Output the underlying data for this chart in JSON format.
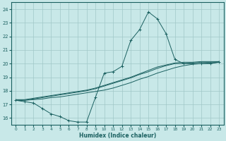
{
  "xlabel": "Humidex (Indice chaleur)",
  "bg_color": "#c8e8e8",
  "grid_color": "#a0c8c8",
  "line_color": "#1a6060",
  "xlim": [
    -0.5,
    23.5
  ],
  "ylim": [
    15.5,
    24.5
  ],
  "yticks": [
    16,
    17,
    18,
    19,
    20,
    21,
    22,
    23,
    24
  ],
  "xticks": [
    0,
    1,
    2,
    3,
    4,
    5,
    6,
    7,
    8,
    9,
    10,
    11,
    12,
    13,
    14,
    15,
    16,
    17,
    18,
    19,
    20,
    21,
    22,
    23
  ],
  "line1_x": [
    0,
    1,
    2,
    3,
    4,
    5,
    6,
    7,
    8,
    9,
    10,
    11,
    12,
    13,
    14,
    15,
    16,
    17,
    18,
    19,
    20,
    21,
    22,
    23
  ],
  "line1_y": [
    17.3,
    17.2,
    17.1,
    16.7,
    16.3,
    16.1,
    15.8,
    15.7,
    15.7,
    17.5,
    19.3,
    19.4,
    19.8,
    21.7,
    22.5,
    23.8,
    23.3,
    22.2,
    20.3,
    20.0,
    20.0,
    20.0,
    20.0,
    20.1
  ],
  "line2_x": [
    0,
    1,
    2,
    3,
    4,
    5,
    6,
    7,
    8,
    9,
    10,
    11,
    12,
    13,
    14,
    15,
    16,
    17,
    18,
    19,
    20,
    21,
    22,
    23
  ],
  "line2_y": [
    17.3,
    17.3,
    17.35,
    17.4,
    17.5,
    17.55,
    17.65,
    17.75,
    17.85,
    17.95,
    18.05,
    18.2,
    18.4,
    18.6,
    18.85,
    19.05,
    19.3,
    19.5,
    19.7,
    19.85,
    19.95,
    20.0,
    20.05,
    20.1
  ],
  "line3_x": [
    0,
    1,
    2,
    3,
    4,
    5,
    6,
    7,
    8,
    9,
    10,
    11,
    12,
    13,
    14,
    15,
    16,
    17,
    18,
    19,
    20,
    21,
    22,
    23
  ],
  "line3_y": [
    17.3,
    17.3,
    17.4,
    17.5,
    17.6,
    17.7,
    17.8,
    17.9,
    18.0,
    18.15,
    18.35,
    18.55,
    18.75,
    18.95,
    19.2,
    19.4,
    19.65,
    19.85,
    20.0,
    20.0,
    20.05,
    20.1,
    20.1,
    20.15
  ],
  "line4_x": [
    0,
    1,
    2,
    3,
    4,
    5,
    6,
    7,
    8,
    9,
    10,
    11,
    12,
    13,
    14,
    15,
    16,
    17,
    18,
    19,
    20,
    21,
    22,
    23
  ],
  "line4_y": [
    17.35,
    17.35,
    17.45,
    17.55,
    17.65,
    17.75,
    17.85,
    17.95,
    18.05,
    18.2,
    18.4,
    18.6,
    18.8,
    19.0,
    19.25,
    19.5,
    19.75,
    19.9,
    20.05,
    20.1,
    20.1,
    20.15,
    20.15,
    20.15
  ]
}
